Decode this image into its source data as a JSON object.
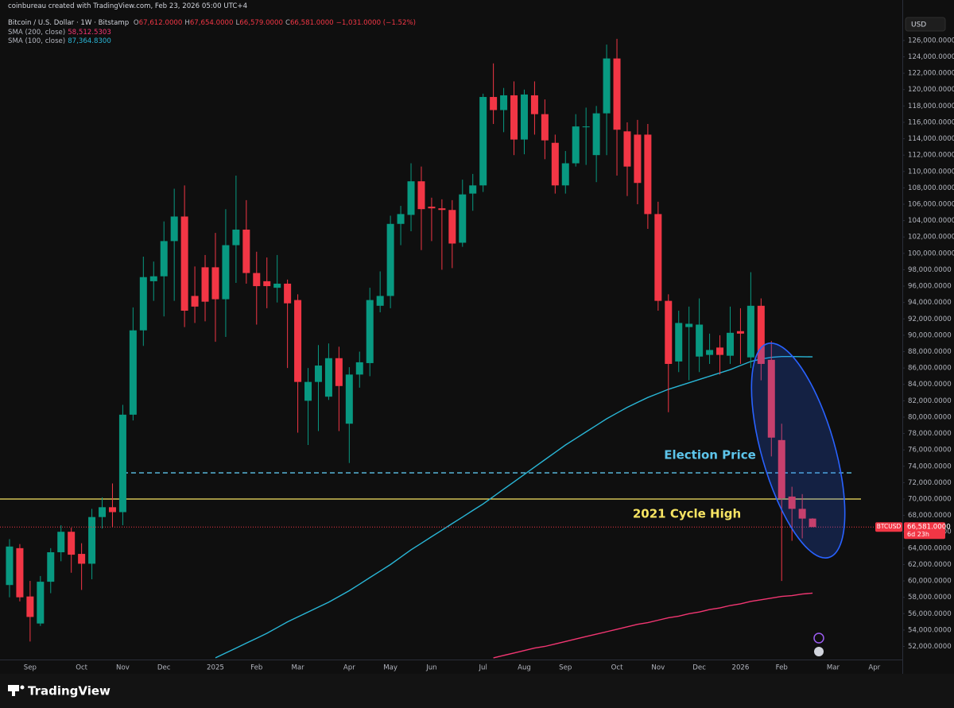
{
  "header": {
    "attribution": "coinbureau created with TradingView.com, Feb 23, 2026 05:00 UTC+4",
    "footer_logo": "TradingView"
  },
  "chart_data": {
    "type": "candlestick",
    "title": "Bitcoin / U.S. Dollar · 1W · Bitstamp",
    "ohlc_legend": [
      {
        "key": "O",
        "value": "67,612.0000"
      },
      {
        "key": "H",
        "value": "67,654.0000"
      },
      {
        "key": "L",
        "value": "66,579.0000"
      },
      {
        "key": "C",
        "value": "66,581.0000"
      }
    ],
    "change": "−1,031.0000 (−1.52%)",
    "currency": "USD",
    "symbol": "BTCUSD",
    "last_price_label": "66,581.0000",
    "countdown": "6d 23h",
    "up_color": "#089981",
    "down_color": "#f23645",
    "categories": [
      null,
      null,
      "Sep",
      null,
      null,
      null,
      null,
      "Oct",
      null,
      null,
      null,
      "Nov",
      null,
      null,
      null,
      "Dec",
      null,
      null,
      null,
      null,
      "2025",
      null,
      null,
      null,
      "Feb",
      null,
      null,
      null,
      "Mar",
      null,
      null,
      null,
      null,
      "Apr",
      null,
      null,
      null,
      "May",
      null,
      null,
      null,
      "Jun",
      null,
      null,
      null,
      null,
      "Jul",
      null,
      null,
      null,
      "Aug",
      null,
      null,
      null,
      "Sep",
      null,
      null,
      null,
      null,
      "Oct",
      null,
      null,
      null,
      "Nov",
      null,
      null,
      null,
      "Dec",
      null,
      null,
      null,
      "2026",
      null,
      null,
      null,
      "Feb",
      null,
      null,
      null,
      null,
      "Mar",
      null,
      null,
      null,
      "Apr",
      null,
      null
    ],
    "open": [
      59500,
      64000,
      58100,
      54800,
      59900,
      63500,
      66000,
      63300,
      62100,
      67800,
      69000,
      68400,
      80300,
      90600,
      96600,
      97200,
      101500,
      104500,
      94800,
      98300,
      98300,
      94400,
      101000,
      102900,
      97600,
      96600,
      95800,
      96300,
      94300,
      82000,
      84300,
      82500,
      87200,
      79200,
      85200,
      86600,
      93600,
      94800,
      103600,
      104700,
      108800,
      105700,
      105500,
      105300,
      101300,
      107300,
      108300,
      119100,
      117500,
      119300,
      113900,
      119300,
      117000,
      113500,
      108300,
      111000,
      115400,
      112000,
      117100,
      123800,
      114900,
      114500,
      114500,
      104800,
      94200,
      86800,
      91000,
      87400,
      87600,
      88500,
      87500,
      90500,
      87300,
      93600,
      87000,
      77200,
      70300,
      68800,
      67612,
      null,
      null,
      null,
      null,
      null,
      null,
      null,
      null
    ],
    "high": [
      65100,
      64500,
      60000,
      60600,
      64000,
      66800,
      66500,
      64600,
      68800,
      70200,
      71900,
      81500,
      93400,
      99600,
      99000,
      103900,
      107900,
      108300,
      98400,
      99800,
      102500,
      105400,
      109500,
      106500,
      100200,
      99500,
      99800,
      96800,
      95000,
      86000,
      88800,
      89000,
      88600,
      86100,
      88000,
      95800,
      97800,
      104600,
      105800,
      111000,
      110600,
      106800,
      106600,
      106500,
      109000,
      109700,
      119500,
      123200,
      120200,
      121000,
      120000,
      121000,
      118800,
      114500,
      112500,
      117000,
      117800,
      118000,
      125500,
      126200,
      116000,
      116300,
      115800,
      106300,
      95000,
      93000,
      93500,
      94500,
      90200,
      90000,
      93500,
      93300,
      97700,
      94500,
      89300,
      79200,
      71500,
      70600,
      67654,
      null,
      null,
      null,
      null,
      null,
      null,
      null,
      null
    ],
    "low": [
      58000,
      57500,
      52600,
      54500,
      58500,
      62400,
      61000,
      58900,
      60200,
      66400,
      66600,
      66800,
      79600,
      88700,
      94200,
      92300,
      94200,
      91000,
      91500,
      91700,
      89200,
      89800,
      96400,
      96300,
      91300,
      93300,
      94000,
      86000,
      78100,
      76600,
      78300,
      82100,
      78300,
      74400,
      83600,
      85000,
      92800,
      93300,
      101000,
      102700,
      100400,
      101500,
      98000,
      98200,
      100800,
      105200,
      107500,
      115800,
      114800,
      112000,
      112100,
      114500,
      111500,
      107300,
      107300,
      110600,
      110800,
      108700,
      112000,
      109500,
      107000,
      106000,
      103000,
      93000,
      80600,
      85500,
      84500,
      85500,
      86500,
      85200,
      86500,
      86500,
      86000,
      84500,
      75200,
      60000,
      64900,
      65200,
      66579,
      null,
      null,
      null,
      null,
      null,
      null,
      null,
      null
    ],
    "close": [
      64200,
      58000,
      55600,
      59900,
      63500,
      66000,
      63200,
      62100,
      67800,
      69000,
      68400,
      80300,
      90600,
      97100,
      97200,
      101500,
      104500,
      93000,
      93500,
      94100,
      94400,
      101000,
      102900,
      97600,
      96000,
      96000,
      96300,
      93900,
      84300,
      84300,
      86300,
      87200,
      83800,
      85200,
      86700,
      94300,
      94800,
      103600,
      104800,
      108800,
      105400,
      105500,
      105300,
      101200,
      107200,
      108300,
      119100,
      117500,
      119300,
      113900,
      119400,
      117000,
      113800,
      108300,
      111000,
      115500,
      115500,
      117100,
      123800,
      115100,
      110600,
      108600,
      104800,
      94200,
      86500,
      91500,
      91400,
      91300,
      88200,
      87600,
      90300,
      90200,
      93600,
      86500,
      77500,
      70100,
      68800,
      67612,
      66581,
      null,
      null,
      null,
      null,
      null,
      null,
      null,
      null
    ],
    "series": [
      {
        "name": "SMA (200, close)",
        "color": "#f23672",
        "last_value_label": "58,512.5303",
        "values": [
          null,
          null,
          null,
          null,
          null,
          null,
          null,
          null,
          null,
          null,
          null,
          null,
          null,
          null,
          null,
          null,
          null,
          null,
          null,
          null,
          null,
          null,
          null,
          null,
          null,
          null,
          null,
          null,
          null,
          null,
          null,
          null,
          null,
          null,
          null,
          null,
          null,
          null,
          null,
          null,
          null,
          null,
          null,
          null,
          null,
          null,
          null,
          50600,
          50900,
          51200,
          51500,
          51800,
          52000,
          52300,
          52600,
          52900,
          53200,
          53500,
          53800,
          54100,
          54400,
          54700,
          54900,
          55200,
          55500,
          55700,
          56000,
          56200,
          56500,
          56700,
          57000,
          57200,
          57500,
          57700,
          57900,
          58100,
          58200,
          58400,
          58512.5303,
          null,
          null,
          null,
          null,
          null,
          null,
          null,
          null
        ]
      },
      {
        "name": "SMA (100, close)",
        "color": "#29b6d6",
        "last_value_label": "87,364.8300",
        "values": [
          null,
          null,
          null,
          null,
          null,
          null,
          null,
          null,
          null,
          null,
          null,
          null,
          null,
          null,
          null,
          null,
          null,
          null,
          null,
          null,
          50600,
          51200,
          51800,
          52400,
          53000,
          53600,
          54300,
          55000,
          55600,
          56200,
          56800,
          57400,
          58100,
          58800,
          59600,
          60400,
          61200,
          62000,
          62900,
          63800,
          64600,
          65400,
          66200,
          67000,
          67800,
          68600,
          69400,
          70300,
          71200,
          72100,
          73000,
          73900,
          74800,
          75700,
          76600,
          77400,
          78200,
          79000,
          79800,
          80500,
          81200,
          81800,
          82400,
          82900,
          83400,
          83800,
          84200,
          84600,
          85000,
          85400,
          85800,
          86300,
          86800,
          87100,
          87300,
          87400,
          87400,
          87380,
          87364.83,
          null,
          null,
          null,
          null,
          null,
          null,
          null,
          null
        ]
      }
    ],
    "hlines": [
      {
        "label": "Election Price",
        "value": 73200,
        "color": "#5dc4ea",
        "dashed": true
      },
      {
        "label": "2021 Cycle High",
        "value": 70000,
        "color": "#f7e463",
        "dashed": false
      }
    ],
    "ylim": [
      50400,
      129000
    ],
    "yticks": [
      {
        "value": 52000,
        "label": "52,000.0000"
      },
      {
        "value": 54000,
        "label": "54,000.0000"
      },
      {
        "value": 56000,
        "label": "56,000.0000"
      },
      {
        "value": 58000,
        "label": "58,000.0000"
      },
      {
        "value": 60000,
        "label": "60,000.0000"
      },
      {
        "value": 62000,
        "label": "62,000.0000"
      },
      {
        "value": 64000,
        "label": "64,000.0000"
      },
      {
        "value": 66000,
        "label": "66,000.0000"
      },
      {
        "value": 68000,
        "label": "68,000.0000"
      },
      {
        "value": 70000,
        "label": "70,000.0000"
      },
      {
        "value": 72000,
        "label": "72,000.0000"
      },
      {
        "value": 74000,
        "label": "74,000.0000"
      },
      {
        "value": 76000,
        "label": "76,000.0000"
      },
      {
        "value": 78000,
        "label": "78,000.0000"
      },
      {
        "value": 80000,
        "label": "80,000.0000"
      },
      {
        "value": 82000,
        "label": "82,000.0000"
      },
      {
        "value": 84000,
        "label": "84,000.0000"
      },
      {
        "value": 86000,
        "label": "86,000.0000"
      },
      {
        "value": 88000,
        "label": "88,000.0000"
      },
      {
        "value": 90000,
        "label": "90,000.0000"
      },
      {
        "value": 92000,
        "label": "92,000.0000"
      },
      {
        "value": 94000,
        "label": "94,000.0000"
      },
      {
        "value": 96000,
        "label": "96,000.0000"
      },
      {
        "value": 98000,
        "label": "98,000.0000"
      },
      {
        "value": 100000,
        "label": "100,000.0000"
      },
      {
        "value": 102000,
        "label": "102,000.0000"
      },
      {
        "value": 104000,
        "label": "104,000.0000"
      },
      {
        "value": 106000,
        "label": "106,000.0000"
      },
      {
        "value": 108000,
        "label": "108,000.0000"
      },
      {
        "value": 110000,
        "label": "110,000.0000"
      },
      {
        "value": 112000,
        "label": "112,000.0000"
      },
      {
        "value": 114000,
        "label": "114,000.0000"
      },
      {
        "value": 116000,
        "label": "116,000.0000"
      },
      {
        "value": 118000,
        "label": "118,000.0000"
      },
      {
        "value": 120000,
        "label": "120,000.0000"
      },
      {
        "value": 122000,
        "label": "122,000.0000"
      },
      {
        "value": 124000,
        "label": "124,000.0000"
      },
      {
        "value": 126000,
        "label": "126,000.0000"
      }
    ],
    "grid": false
  }
}
